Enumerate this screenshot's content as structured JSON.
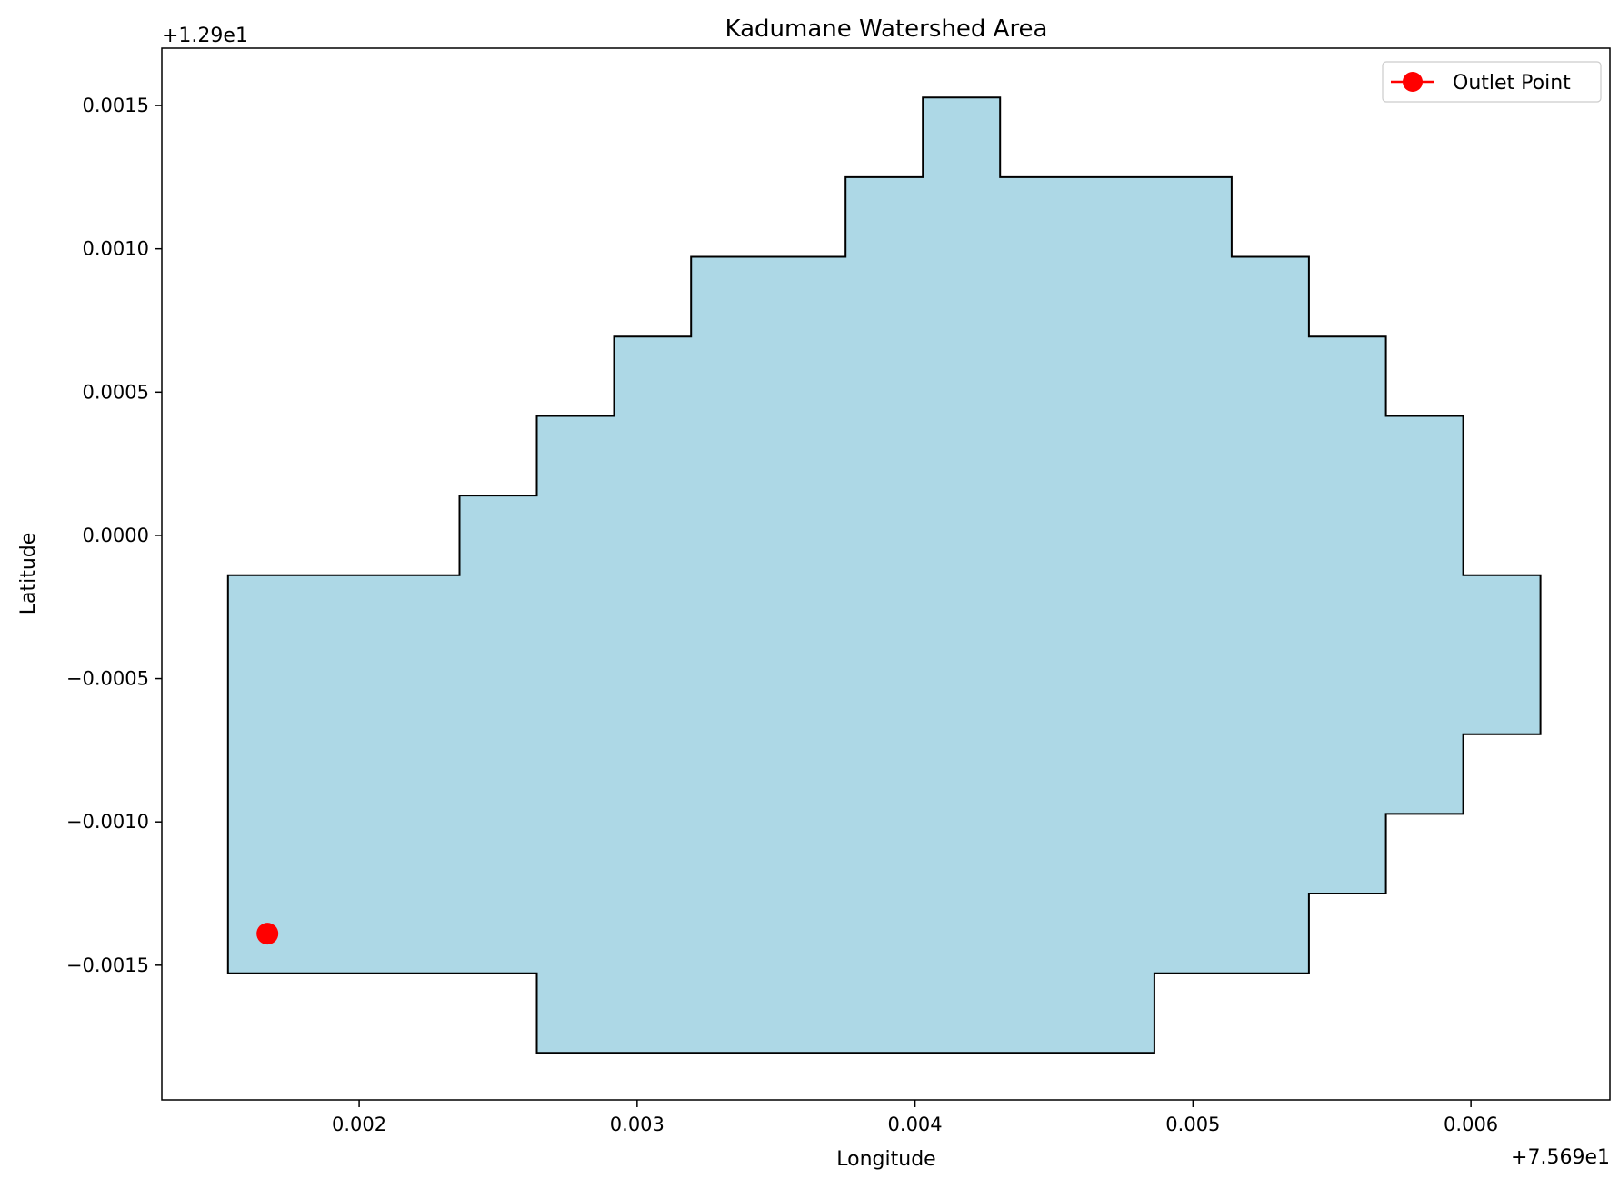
{
  "chart_data": {
    "type": "area",
    "title": "Kadumane Watershed Area",
    "xlabel": "Longitude",
    "ylabel": "Latitude",
    "x_offset_label": "+7.569e1",
    "y_offset_label": "+1.29e1",
    "xlim": [
      0.00129,
      0.0065
    ],
    "ylim": [
      -0.00197,
      0.0017
    ],
    "x_ticks": [
      {
        "value": 0.002,
        "label": "0.002"
      },
      {
        "value": 0.003,
        "label": "0.003"
      },
      {
        "value": 0.004,
        "label": "0.004"
      },
      {
        "value": 0.005,
        "label": "0.005"
      },
      {
        "value": 0.006,
        "label": "0.006"
      }
    ],
    "y_ticks": [
      {
        "value": 0.0015,
        "label": "0.0015"
      },
      {
        "value": 0.001,
        "label": "0.0010"
      },
      {
        "value": 0.0005,
        "label": "0.0005"
      },
      {
        "value": 0.0,
        "label": "0.0000"
      },
      {
        "value": -0.0005,
        "label": "−0.0005"
      },
      {
        "value": -0.001,
        "label": "−0.0010"
      },
      {
        "value": -0.0015,
        "label": "−0.0015"
      }
    ],
    "grid": false,
    "legend": {
      "position": "upper-right",
      "entries": [
        {
          "label": "Outlet Point",
          "color": "#ff0000",
          "marker": "circle"
        }
      ]
    },
    "watershed_polygon": {
      "fill": "#add8e6",
      "edge": "#000000",
      "x": [
        0.001528,
        0.002361,
        0.002361,
        0.002639,
        0.002639,
        0.002917,
        0.002917,
        0.003194,
        0.003194,
        0.00375,
        0.00375,
        0.004028,
        0.004028,
        0.004306,
        0.004306,
        0.005139,
        0.005139,
        0.005417,
        0.005417,
        0.005694,
        0.005694,
        0.005972,
        0.005972,
        0.00625,
        0.00625,
        0.005972,
        0.005972,
        0.005694,
        0.005694,
        0.005417,
        0.005417,
        0.004861,
        0.004861,
        0.002639,
        0.002639,
        0.001528
      ],
      "y": [
        -0.000139,
        -0.000139,
        0.000139,
        0.000139,
        0.000417,
        0.000417,
        0.000694,
        0.000694,
        0.000972,
        0.000972,
        0.00125,
        0.00125,
        0.001528,
        0.001528,
        0.00125,
        0.00125,
        0.000972,
        0.000972,
        0.000694,
        0.000694,
        0.000417,
        0.000417,
        -0.000139,
        -0.000139,
        -0.000694,
        -0.000694,
        -0.000972,
        -0.000972,
        -0.00125,
        -0.00125,
        -0.001528,
        -0.001528,
        -0.001806,
        -0.001806,
        -0.001528,
        -0.001528
      ]
    },
    "series": [
      {
        "name": "Outlet Point",
        "x": [
          0.00167
        ],
        "y": [
          -0.00139
        ],
        "color": "#ff0000",
        "marker": "circle"
      }
    ]
  }
}
